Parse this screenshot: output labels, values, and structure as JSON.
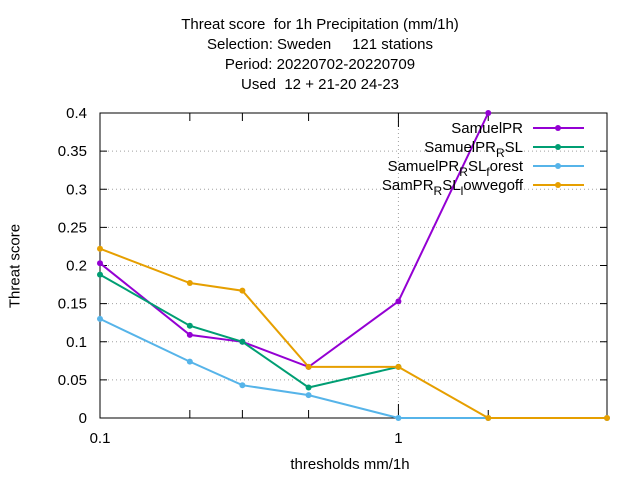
{
  "chart_data": {
    "type": "line",
    "title_lines": [
      "Threat score  for 1h Precipitation (mm/1h)",
      "Selection: Sweden     121 stations",
      "Period: 20220702-20220709",
      "Used  12 + 21-20 24-23"
    ],
    "xlabel": "thresholds mm/1h",
    "ylabel": "Threat score",
    "x_scale": "log",
    "xlim": [
      0.1,
      5
    ],
    "ylim": [
      0,
      0.4
    ],
    "x_tick_labels": [
      {
        "value": 0.1,
        "label": "0.1"
      },
      {
        "value": 1,
        "label": "1"
      }
    ],
    "x_minor_ticks": [
      0.2,
      0.3,
      0.5,
      2,
      5
    ],
    "y_ticks": [
      0,
      0.05,
      0.1,
      0.15,
      0.2,
      0.25,
      0.3,
      0.35,
      0.4
    ],
    "y_tick_labels": [
      "0",
      "0.05",
      "0.1",
      "0.15",
      "0.2",
      "0.25",
      "0.3",
      "0.35",
      "0.4"
    ],
    "grid": true,
    "legend_position": "top-right",
    "series": [
      {
        "name": "SamuelPR",
        "legend": {
          "base": "SamuelPR"
        },
        "color": "#9400d3",
        "x": [
          0.1,
          0.2,
          0.3,
          0.5,
          1,
          2
        ],
        "y": [
          0.203,
          0.109,
          0.1,
          0.067,
          0.153,
          0.4
        ]
      },
      {
        "name": "SamuelPR_R SL",
        "legend": {
          "base": "SamuelPR",
          "sub": "R",
          "tail": "SL"
        },
        "color": "#009e73",
        "x": [
          0.1,
          0.2,
          0.3,
          0.5,
          1
        ],
        "y": [
          0.188,
          0.121,
          0.1,
          0.04,
          0.067
        ]
      },
      {
        "name": "SamuelPR_R SL_forest",
        "legend": {
          "base": "SamuelPR",
          "sub": "R",
          "tail": "SL",
          "sub2": "f",
          "tail2": "orest"
        },
        "color": "#56b4e9",
        "x": [
          0.1,
          0.2,
          0.3,
          0.5,
          1,
          2,
          5
        ],
        "y": [
          0.13,
          0.074,
          0.043,
          0.03,
          0.0,
          0.0,
          0.0
        ]
      },
      {
        "name": "SamPR_R SL_lowvegoff",
        "legend": {
          "base": "SamPR",
          "sub": "R",
          "tail": "SL",
          "sub2": "l",
          "tail2": "owvegoff"
        },
        "color": "#e69f00",
        "x": [
          0.1,
          0.2,
          0.3,
          0.5,
          1,
          2,
          5
        ],
        "y": [
          0.222,
          0.177,
          0.167,
          0.067,
          0.067,
          0.0,
          0.0
        ]
      }
    ]
  }
}
